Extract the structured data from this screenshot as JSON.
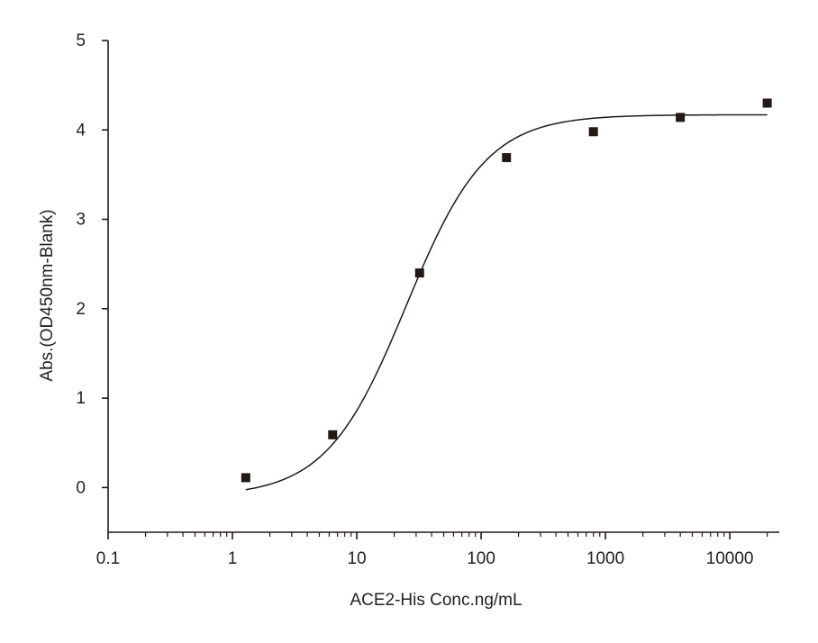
{
  "chart_data": {
    "type": "scatter",
    "title": "",
    "xlabel": "ACE2-His Conc.ng/mL",
    "ylabel": "Abs.(OD450nm-Blank)",
    "x_scale": "log",
    "xlim": [
      0.1,
      25000
    ],
    "ylim": [
      -0.5,
      5
    ],
    "x_ticks": [
      0.1,
      1,
      10,
      100,
      1000,
      10000
    ],
    "x_tick_labels": [
      "0.1",
      "1",
      "10",
      "100",
      "1000",
      "10000"
    ],
    "y_ticks": [
      0,
      1,
      2,
      3,
      4,
      5
    ],
    "y_tick_labels": [
      "0",
      "1",
      "2",
      "3",
      "4",
      "5"
    ],
    "grid": false,
    "legend": "none",
    "series": [
      {
        "marker": "square",
        "color": "#231815",
        "points": [
          {
            "x": 1.28,
            "y": 0.11
          },
          {
            "x": 6.4,
            "y": 0.59
          },
          {
            "x": 32,
            "y": 2.4
          },
          {
            "x": 160,
            "y": 3.69
          },
          {
            "x": 800,
            "y": 3.98
          },
          {
            "x": 4000,
            "y": 4.14
          },
          {
            "x": 20000,
            "y": 4.3
          }
        ]
      }
    ],
    "fit_curve": {
      "model": "4PL",
      "bottom": -0.1,
      "top": 4.17,
      "ec50": 25,
      "hill": 1.35,
      "x_range": [
        1.28,
        20000
      ],
      "color": "#231815"
    }
  }
}
